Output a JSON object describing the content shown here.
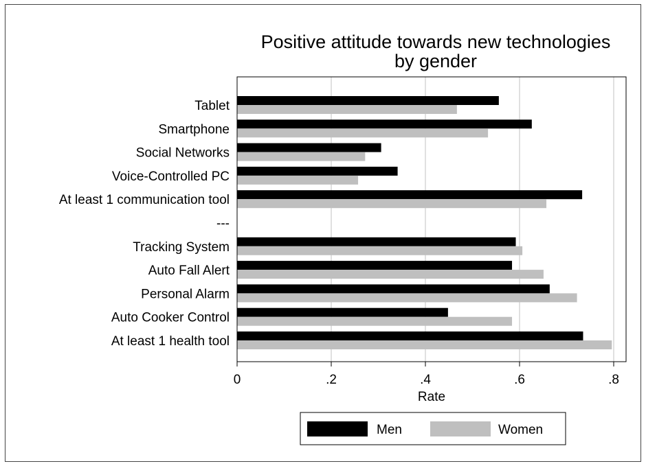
{
  "chart_data": {
    "type": "bar",
    "orientation": "horizontal",
    "title_line1": "Positive attitude towards new technologies",
    "title_line2": "by gender",
    "xlabel": "Rate",
    "ylabel": "",
    "xlim": [
      0,
      0.82
    ],
    "x_ticks": [
      0,
      0.2,
      0.4,
      0.6,
      0.8
    ],
    "x_tick_labels": [
      "0",
      ".2",
      ".4",
      ".6",
      ".8"
    ],
    "grid": "vertical",
    "legend_position": "bottom",
    "categories": [
      "Tablet",
      "Smartphone",
      "Social Networks",
      "Voice-Controlled PC",
      "At least 1 communication tool",
      "---",
      "Tracking System",
      "Auto Fall Alert",
      "Personal Alarm",
      "Auto Cooker Control",
      "At least 1 health tool"
    ],
    "series": [
      {
        "name": "Men",
        "color": "#000000",
        "values": [
          0.556,
          0.626,
          0.306,
          0.341,
          0.733,
          null,
          0.592,
          0.584,
          0.664,
          0.448,
          0.735
        ]
      },
      {
        "name": "Women",
        "color": "#bfbfbf",
        "values": [
          0.467,
          0.533,
          0.272,
          0.257,
          0.657,
          null,
          0.606,
          0.651,
          0.722,
          0.584,
          0.796
        ]
      }
    ]
  }
}
